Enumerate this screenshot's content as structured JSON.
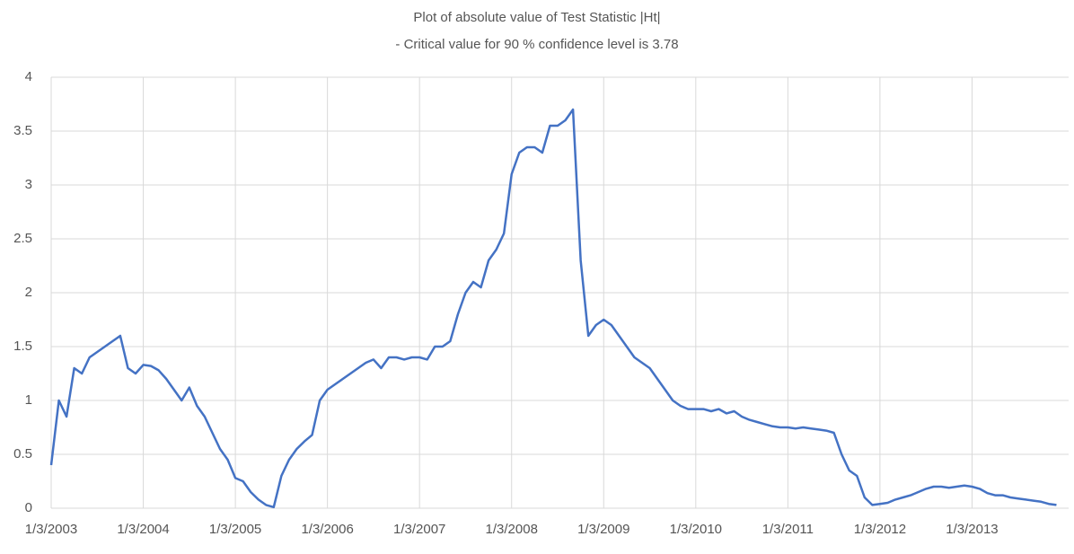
{
  "chart_data": {
    "type": "line",
    "title": "Plot of absolute value of Test Statistic |Ht|",
    "subtitle": "- Critical value for 90 % confidence level is 3.78",
    "categories": [
      "1/3/2003",
      null,
      null,
      null,
      null,
      null,
      null,
      null,
      null,
      null,
      null,
      null,
      "1/3/2004",
      null,
      null,
      null,
      null,
      null,
      null,
      null,
      null,
      null,
      null,
      null,
      "1/3/2005",
      null,
      null,
      null,
      null,
      null,
      null,
      null,
      null,
      null,
      null,
      null,
      "1/3/2006",
      null,
      null,
      null,
      null,
      null,
      null,
      null,
      null,
      null,
      null,
      null,
      "1/3/2007",
      null,
      null,
      null,
      null,
      null,
      null,
      null,
      null,
      null,
      null,
      null,
      "1/3/2008",
      null,
      null,
      null,
      null,
      null,
      null,
      null,
      null,
      null,
      null,
      null,
      "1/3/2009",
      null,
      null,
      null,
      null,
      null,
      null,
      null,
      null,
      null,
      null,
      null,
      "1/3/2010",
      null,
      null,
      null,
      null,
      null,
      null,
      null,
      null,
      null,
      null,
      null,
      "1/3/2011",
      null,
      null,
      null,
      null,
      null,
      null,
      null,
      null,
      null,
      null,
      null,
      "1/3/2012",
      null,
      null,
      null,
      null,
      null,
      null,
      null,
      null,
      null,
      null,
      null,
      "1/3/2013",
      null,
      null,
      null,
      null,
      null,
      null,
      null,
      null,
      null,
      null,
      null
    ],
    "series": [
      {
        "color": "#4472c4",
        "values": [
          0.4,
          1.0,
          0.85,
          1.3,
          1.25,
          1.4,
          1.45,
          1.5,
          1.55,
          1.6,
          1.3,
          1.25,
          1.33,
          1.32,
          1.28,
          1.2,
          1.1,
          1.0,
          1.12,
          0.95,
          0.85,
          0.7,
          0.55,
          0.45,
          0.28,
          0.25,
          0.15,
          0.08,
          0.03,
          0.01,
          0.3,
          0.45,
          0.55,
          0.62,
          0.68,
          1.0,
          1.1,
          1.15,
          1.2,
          1.25,
          1.3,
          1.35,
          1.38,
          1.3,
          1.4,
          1.4,
          1.38,
          1.4,
          1.4,
          1.38,
          1.5,
          1.5,
          1.55,
          1.8,
          2.0,
          2.1,
          2.05,
          2.3,
          2.4,
          2.55,
          3.1,
          3.3,
          3.35,
          3.35,
          3.3,
          3.55,
          3.55,
          3.6,
          3.7,
          2.3,
          1.6,
          1.7,
          1.75,
          1.7,
          1.6,
          1.5,
          1.4,
          1.35,
          1.3,
          1.2,
          1.1,
          1.0,
          0.95,
          0.92,
          0.92,
          0.92,
          0.9,
          0.92,
          0.88,
          0.9,
          0.85,
          0.82,
          0.8,
          0.78,
          0.76,
          0.75,
          0.75,
          0.74,
          0.75,
          0.74,
          0.73,
          0.72,
          0.7,
          0.5,
          0.35,
          0.3,
          0.1,
          0.03,
          0.04,
          0.05,
          0.08,
          0.1,
          0.12,
          0.15,
          0.18,
          0.2,
          0.2,
          0.19,
          0.2,
          0.21,
          0.2,
          0.18,
          0.14,
          0.12,
          0.12,
          0.1,
          0.09,
          0.08,
          0.07,
          0.06,
          0.04,
          0.03
        ]
      }
    ],
    "ylim": [
      0,
      4
    ],
    "yticks": [
      0,
      0.5,
      1,
      1.5,
      2,
      2.5,
      3,
      3.5,
      4
    ],
    "grid": true
  }
}
